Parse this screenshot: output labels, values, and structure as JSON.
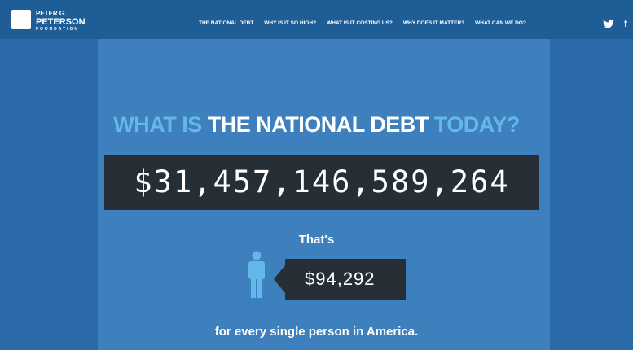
{
  "header": {
    "logo": [
      "PETER G.",
      "PETERSON",
      "FOUNDATION"
    ],
    "nav": [
      "THE NATIONAL DEBT",
      "WHY IS IT SO HIGH?",
      "WHAT IS IT COSTING US?",
      "WHY DOES IT MATTER?",
      "WHAT CAN WE DO?"
    ],
    "social": "f"
  },
  "hero": {
    "heading": [
      "WHAT IS",
      "THE NATIONAL DEBT",
      "TODAY?"
    ],
    "debt": "$31,457,146,589,264",
    "thats": "That's",
    "per_person": "$94,292",
    "caption": "for every single person in America."
  }
}
